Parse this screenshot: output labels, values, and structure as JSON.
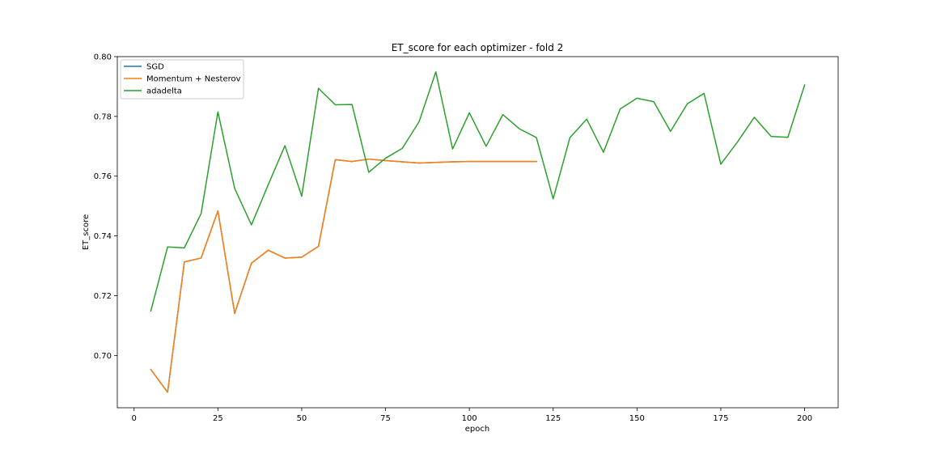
{
  "chart_data": {
    "type": "line",
    "title": "ET_score for each optimizer - fold 2",
    "xlabel": "epoch",
    "ylabel": "ET_score",
    "xlim": [
      -5,
      210
    ],
    "ylim": [
      0.6825,
      0.8
    ],
    "xticks": [
      0,
      25,
      50,
      75,
      100,
      125,
      150,
      175,
      200
    ],
    "yticks": [
      0.7,
      0.72,
      0.74,
      0.76,
      0.78,
      0.8
    ],
    "legend_position": "top-left",
    "grid": false,
    "series": [
      {
        "name": "SGD",
        "color": "#1f77b4",
        "x": [
          5,
          10,
          15,
          20,
          25,
          30,
          35,
          40,
          45,
          50,
          55,
          60,
          65,
          70,
          75,
          80,
          85,
          90,
          95,
          100,
          105,
          110,
          115,
          120
        ],
        "y": [
          0.6953,
          0.6877,
          0.7313,
          0.7326,
          0.7484,
          0.7141,
          0.7309,
          0.7352,
          0.7326,
          0.7329,
          0.7365,
          0.7655,
          0.7649,
          0.7657,
          0.7652,
          0.7648,
          0.7644,
          0.7646,
          0.7648,
          0.7649,
          0.7649,
          0.7649,
          0.7649,
          0.7649
        ]
      },
      {
        "name": "Momentum + Nesterov",
        "color": "#ff7f0e",
        "x": [
          5,
          10,
          15,
          20,
          25,
          30,
          35,
          40,
          45,
          50,
          55,
          60,
          65,
          70,
          75,
          80,
          85,
          90,
          95,
          100,
          105,
          110,
          115,
          120
        ],
        "y": [
          0.6953,
          0.6877,
          0.7313,
          0.7326,
          0.7484,
          0.7141,
          0.7309,
          0.7352,
          0.7326,
          0.7329,
          0.7365,
          0.7655,
          0.7649,
          0.7657,
          0.7652,
          0.7648,
          0.7644,
          0.7646,
          0.7648,
          0.7649,
          0.7649,
          0.7649,
          0.7649,
          0.7649
        ]
      },
      {
        "name": "adadelta",
        "color": "#2ca02c",
        "x": [
          5,
          10,
          15,
          20,
          25,
          30,
          35,
          40,
          45,
          50,
          55,
          60,
          65,
          70,
          75,
          80,
          85,
          90,
          95,
          100,
          105,
          110,
          115,
          120,
          125,
          130,
          135,
          140,
          145,
          150,
          155,
          160,
          165,
          170,
          175,
          180,
          185,
          190,
          195,
          200
        ],
        "y": [
          0.7149,
          0.7363,
          0.736,
          0.7475,
          0.7815,
          0.7559,
          0.7437,
          0.7571,
          0.7702,
          0.7533,
          0.7894,
          0.7839,
          0.784,
          0.7613,
          0.766,
          0.7693,
          0.7782,
          0.7949,
          0.7691,
          0.7812,
          0.77,
          0.7806,
          0.7758,
          0.7729,
          0.7524,
          0.7729,
          0.7791,
          0.768,
          0.7825,
          0.7861,
          0.7849,
          0.775,
          0.7842,
          0.7877,
          0.764,
          0.7715,
          0.7797,
          0.7733,
          0.773,
          0.7905
        ]
      }
    ]
  }
}
